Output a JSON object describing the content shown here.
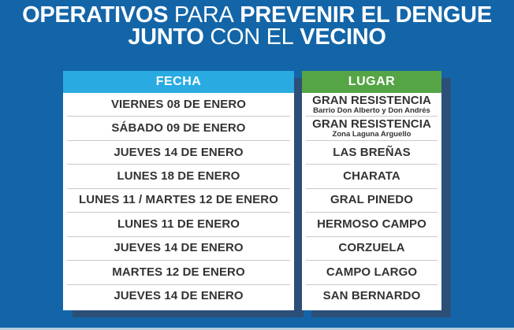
{
  "title": {
    "line1_bold1": "OPERATIVOS",
    "line1_light": "PARA",
    "line1_bold2": "PREVENIR EL DENGUE",
    "line2_bold1": "JUNTO",
    "line2_light": "CON EL",
    "line2_bold2": "VECINO"
  },
  "schedule": {
    "fecha_header": "FECHA",
    "lugar_header": "LUGAR",
    "rows": [
      {
        "fecha": "VIERNES 08 DE ENERO",
        "lugar": "GRAN RESISTENCIA",
        "lugar_sub": "Barrio Don Alberto y Don Andrés"
      },
      {
        "fecha": "SÁBADO 09 DE ENERO",
        "lugar": "GRAN RESISTENCIA",
        "lugar_sub": "Zona Laguna Arguello"
      },
      {
        "fecha": "JUEVES 14 DE ENERO",
        "lugar": "LAS BREÑAS",
        "lugar_sub": ""
      },
      {
        "fecha": "LUNES 18 DE ENERO",
        "lugar": "CHARATA",
        "lugar_sub": ""
      },
      {
        "fecha": "LUNES 11 / MARTES 12 DE ENERO",
        "lugar": "GRAL PINEDO",
        "lugar_sub": ""
      },
      {
        "fecha": "LUNES 11 DE ENERO",
        "lugar": "HERMOSO CAMPO",
        "lugar_sub": ""
      },
      {
        "fecha": "JUEVES 14 DE ENERO",
        "lugar": "CORZUELA",
        "lugar_sub": ""
      },
      {
        "fecha": "MARTES 12 DE ENERO",
        "lugar": "CAMPO LARGO",
        "lugar_sub": ""
      },
      {
        "fecha": "JUEVES 14 DE ENERO",
        "lugar": "SAN BERNARDO",
        "lugar_sub": ""
      }
    ]
  },
  "colors": {
    "background": "#1365a8",
    "shadow": "#2c4f78",
    "fecha_header_bg": "#29abe2",
    "lugar_header_bg": "#55a546",
    "row_text": "#333333",
    "title_text": "#ffffff",
    "bottom_strip": "#b7cddd"
  }
}
